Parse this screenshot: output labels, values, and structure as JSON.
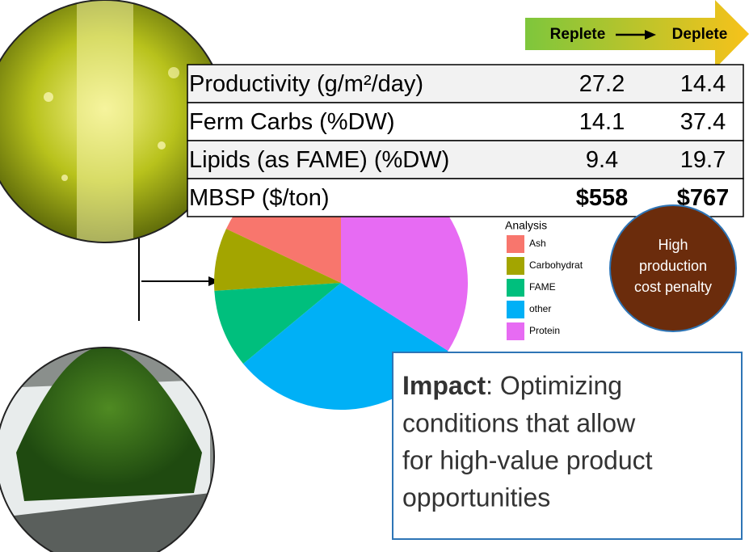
{
  "arrow": {
    "from": "Replete",
    "to": "Deplete"
  },
  "table": {
    "rows": [
      [
        "Productivity (g/m²/day)",
        "27.2",
        "14.4"
      ],
      [
        "Ferm Carbs (%DW)",
        "14.1",
        "37.4"
      ],
      [
        "Lipids (as FAME) (%DW)",
        "9.4",
        "19.7"
      ],
      [
        "MBSP ($/ton)",
        "$558",
        "$767"
      ]
    ]
  },
  "chart_data": {
    "type": "pie",
    "legend_title": "Analysis",
    "categories": [
      "Ash",
      "Carbohydrat",
      "FAME",
      "other",
      "Protein"
    ],
    "values": [
      18,
      8,
      10,
      30,
      34
    ],
    "colors": [
      "#f8766d",
      "#a3a500",
      "#00bf7d",
      "#00b0f6",
      "#e76bf3"
    ]
  },
  "callout": {
    "lines": [
      "High",
      "production",
      "cost penalty"
    ]
  },
  "impact": {
    "lead": "Impact",
    "lines": [
      ": Optimizing",
      "conditions that allow",
      "for high-value product",
      "opportunities"
    ]
  }
}
